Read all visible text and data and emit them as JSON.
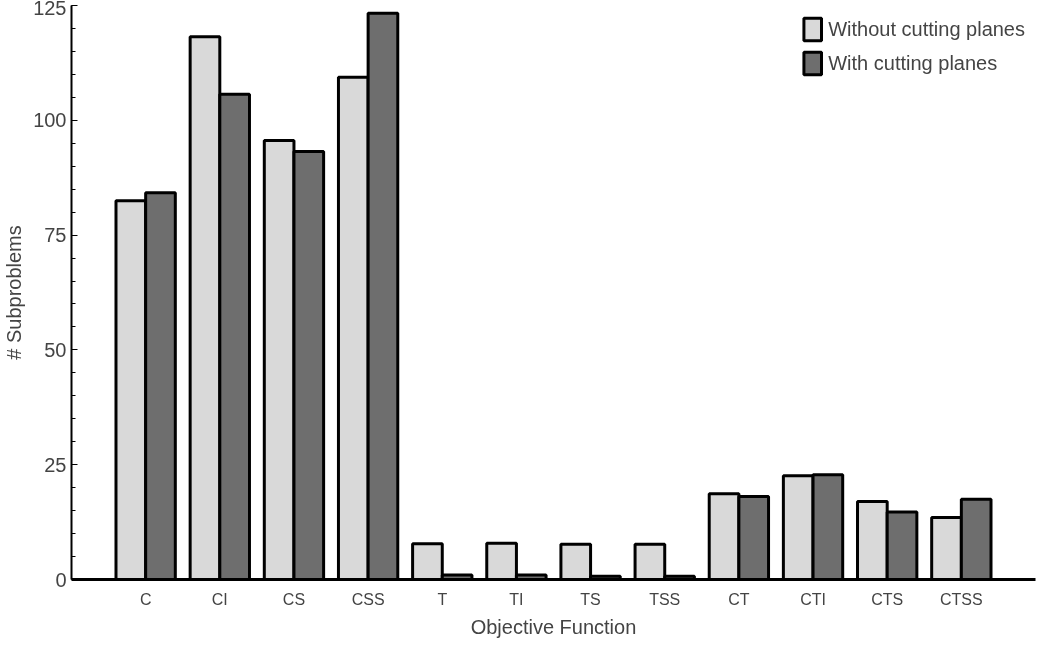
{
  "chart_data": {
    "type": "bar",
    "xlabel": "Objective Function",
    "ylabel": "# Subproblems",
    "categories": [
      "C",
      "CI",
      "CS",
      "CSS",
      "T",
      "TI",
      "TS",
      "TSS",
      "CT",
      "CTI",
      "CTS",
      "CTSS"
    ],
    "series": [
      {
        "name": "Without cutting planes",
        "color": "#d9d9d9",
        "values": [
          82.5,
          118.2,
          95.6,
          109.4,
          7.8,
          7.9,
          7.7,
          7.7,
          18.7,
          22.6,
          17.0,
          13.5
        ]
      },
      {
        "name": "With cutting planes",
        "color": "#6e6e6e",
        "values": [
          84.2,
          105.7,
          93.2,
          123.3,
          1.0,
          1.0,
          0.7,
          0.7,
          18.1,
          22.8,
          14.7,
          17.5
        ]
      }
    ],
    "ylim": [
      0,
      125
    ],
    "yticks": [
      0,
      25,
      50,
      75,
      100,
      125
    ],
    "grid": false,
    "legend": "top right"
  }
}
